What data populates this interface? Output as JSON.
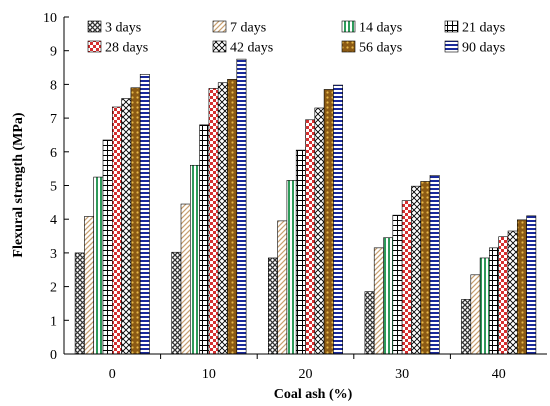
{
  "chart_data": {
    "type": "bar",
    "title": "",
    "xlabel": "Coal ash (%)",
    "ylabel": "Flexural strength (MPa)",
    "ylim": [
      0,
      10
    ],
    "yticks": [
      "0",
      "1",
      "2",
      "3",
      "4",
      "5",
      "6",
      "7",
      "8",
      "9",
      "10"
    ],
    "categories": [
      "0",
      "10",
      "20",
      "30",
      "40"
    ],
    "legend_position": "top",
    "grid": false,
    "series": [
      {
        "name": "3 days",
        "values": [
          3.0,
          3.02,
          2.85,
          1.85,
          1.62
        ],
        "pattern": "crosshatch",
        "color": "#333333"
      },
      {
        "name": "7 days",
        "values": [
          4.08,
          4.45,
          3.95,
          3.15,
          2.35
        ],
        "pattern": "diagonal",
        "color": "#c8a070"
      },
      {
        "name": "14 days",
        "values": [
          5.25,
          5.6,
          5.15,
          3.45,
          2.85
        ],
        "pattern": "vertical",
        "color": "#2e9a5a"
      },
      {
        "name": "21 days",
        "values": [
          6.35,
          6.8,
          6.05,
          4.12,
          3.15
        ],
        "pattern": "grid",
        "color": "#000000"
      },
      {
        "name": "28 days",
        "values": [
          7.33,
          7.88,
          6.95,
          4.55,
          3.48
        ],
        "pattern": "checker",
        "color": "#d63030"
      },
      {
        "name": "42 days",
        "values": [
          7.58,
          8.05,
          7.3,
          4.98,
          3.65
        ],
        "pattern": "diamond",
        "color": "#000000"
      },
      {
        "name": "56 days",
        "values": [
          7.9,
          8.15,
          7.85,
          5.12,
          3.98
        ],
        "pattern": "dots",
        "color": "#8b5a14"
      },
      {
        "name": "90 days",
        "values": [
          8.3,
          8.75,
          7.98,
          5.3,
          4.1
        ],
        "pattern": "horizontal",
        "color": "#1a2a9a"
      }
    ]
  }
}
